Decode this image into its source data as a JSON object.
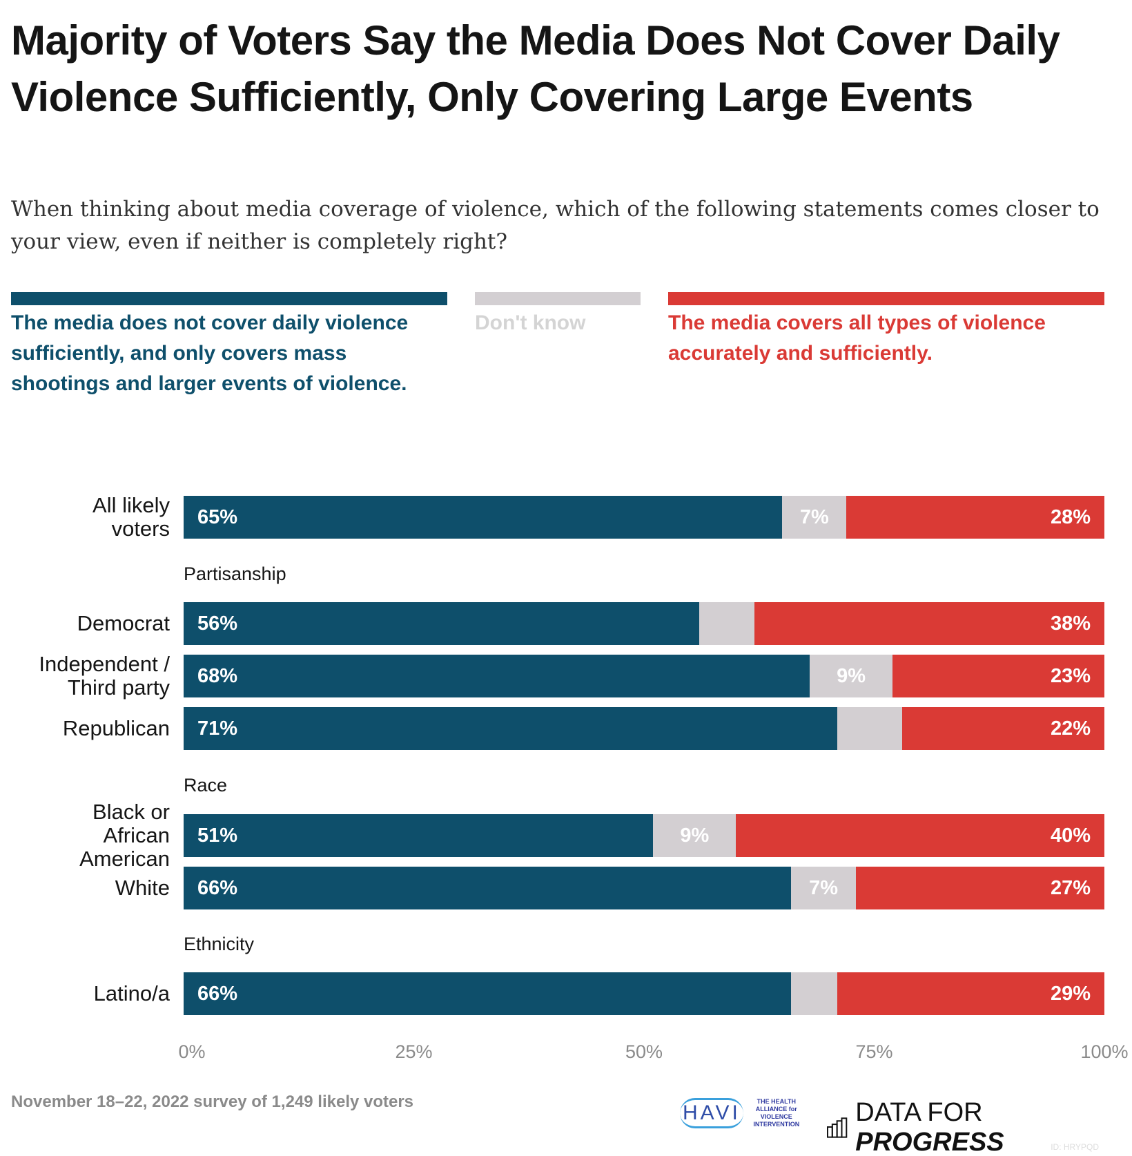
{
  "title": "Majority of Voters Say the Media Does Not Cover Daily Violence Sufficiently, Only Covering Large Events",
  "subtitle": "When thinking about media coverage of violence, which of the following statements comes closer to your view, even if neither is completely right?",
  "colors": {
    "not_sufficient": "#0e4f6b",
    "dont_know": "#d3cfd2",
    "sufficient": "#da3a35",
    "dont_know_text": "#d4d4d4"
  },
  "legend": [
    {
      "label": "The media does not cover daily violence sufficiently, and only covers mass shootings and larger events of violence."
    },
    {
      "label": "Don't know"
    },
    {
      "label": "The media covers all types of violence accurately and sufficiently."
    }
  ],
  "chart_data": {
    "type": "bar",
    "orientation": "horizontal",
    "stacked": true,
    "xlim": [
      0,
      100
    ],
    "x_ticks": [
      "0%",
      "25%",
      "50%",
      "75%",
      "100%"
    ],
    "groups": [
      "",
      "Partisanship",
      "Race",
      "Ethnicity"
    ],
    "categories": [
      "All likely voters",
      "Democrat",
      "Independent / Third party",
      "Republican",
      "Black or African American",
      "White",
      "Latino/a"
    ],
    "category_groups": [
      0,
      1,
      1,
      1,
      2,
      2,
      3
    ],
    "series": [
      {
        "name": "The media does not cover daily violence sufficiently, and only covers mass shootings and larger events of violence.",
        "values": [
          65,
          56,
          68,
          71,
          51,
          66,
          66
        ],
        "labels": [
          "65%",
          "56%",
          "68%",
          "71%",
          "51%",
          "66%",
          "66%"
        ]
      },
      {
        "name": "Don't know",
        "values": [
          7,
          6,
          9,
          7,
          9,
          7,
          5
        ],
        "labels": [
          "7%",
          "",
          "9%",
          "",
          "9%",
          "7%",
          ""
        ]
      },
      {
        "name": "The media covers all types of violence accurately and sufficiently.",
        "values": [
          28,
          38,
          23,
          22,
          40,
          27,
          29
        ],
        "labels": [
          "28%",
          "38%",
          "23%",
          "22%",
          "40%",
          "27%",
          "29%"
        ]
      }
    ],
    "grid": false
  },
  "footer": {
    "note": "November 18–22, 2022 survey of 1,249 likely voters",
    "partner_logo": "HAVI",
    "partner_text": "THE HEALTH ALLIANCE for VIOLENCE INTERVENTION",
    "brand_light": "DATA FOR",
    "brand_bold": "PROGRESS",
    "id": "ID: HRYPQD"
  }
}
